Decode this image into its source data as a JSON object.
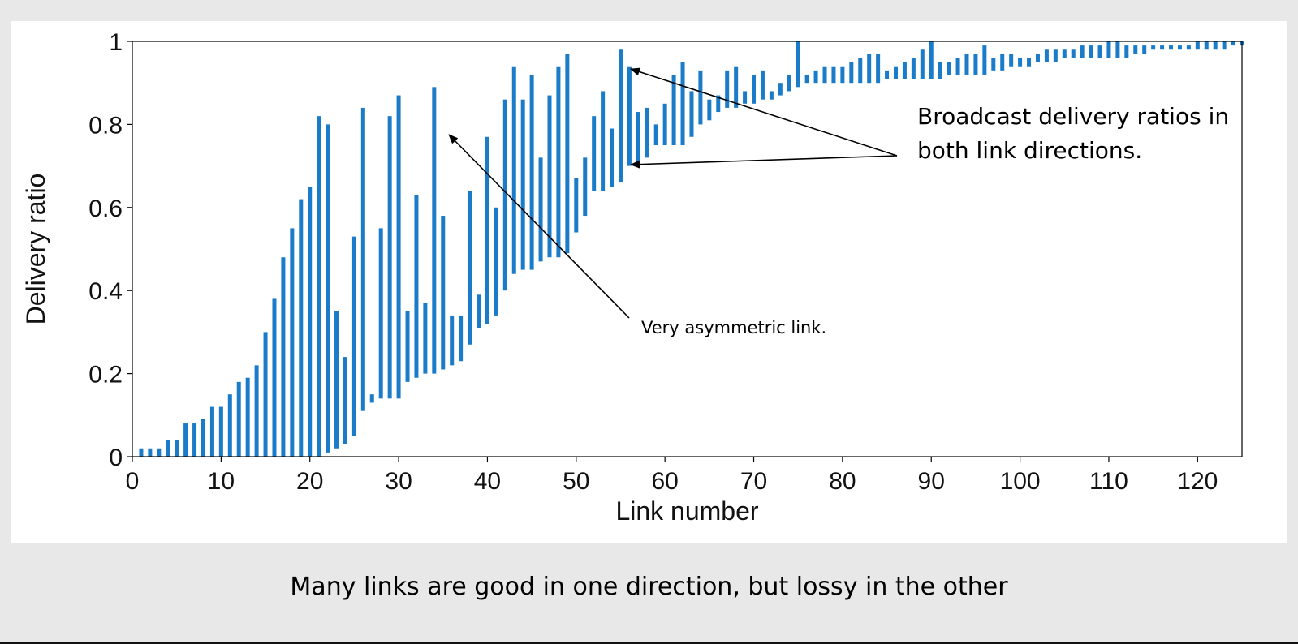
{
  "chart_data": {
    "type": "bar",
    "subtype": "range",
    "xlabel": "Link number",
    "ylabel": "Delivery ratio",
    "xlim": [
      0,
      125
    ],
    "ylim": [
      0,
      1
    ],
    "xticks": [
      0,
      10,
      20,
      30,
      40,
      50,
      60,
      70,
      80,
      90,
      100,
      110,
      120
    ],
    "yticks": [
      0,
      0.2,
      0.4,
      0.6,
      0.8,
      1
    ],
    "ytick_labels": [
      "0",
      "0.2",
      "0.4",
      "0.6",
      "0.8",
      "1"
    ],
    "grid": false,
    "legend": "none",
    "color": "#1a7bc8",
    "description_of_values": "each link shows a vertical bar spanning the delivery ratios measured in its two directions",
    "x": [
      1,
      2,
      3,
      4,
      5,
      6,
      7,
      8,
      9,
      10,
      11,
      12,
      13,
      14,
      15,
      16,
      17,
      18,
      19,
      20,
      21,
      22,
      23,
      24,
      25,
      26,
      27,
      28,
      29,
      30,
      31,
      32,
      33,
      34,
      35,
      36,
      37,
      38,
      39,
      40,
      41,
      42,
      43,
      44,
      45,
      46,
      47,
      48,
      49,
      50,
      51,
      52,
      53,
      54,
      55,
      56,
      57,
      58,
      59,
      60,
      61,
      62,
      63,
      64,
      65,
      66,
      67,
      68,
      69,
      70,
      71,
      72,
      73,
      74,
      75,
      76,
      77,
      78,
      79,
      80,
      81,
      82,
      83,
      84,
      85,
      86,
      87,
      88,
      89,
      90,
      91,
      92,
      93,
      94,
      95,
      96,
      97,
      98,
      99,
      100,
      101,
      102,
      103,
      104,
      105,
      106,
      107,
      108,
      109,
      110,
      111,
      112,
      113,
      114,
      115,
      116,
      117,
      118,
      119,
      120,
      121,
      122,
      123,
      124,
      125
    ],
    "low": [
      0,
      0,
      0,
      0,
      0,
      0,
      0,
      0,
      0,
      0,
      0,
      0,
      0,
      0,
      0,
      0,
      0,
      0,
      0,
      0,
      0,
      0.01,
      0.02,
      0.03,
      0.05,
      0.11,
      0.13,
      0.14,
      0.14,
      0.14,
      0.18,
      0.19,
      0.2,
      0.2,
      0.21,
      0.22,
      0.23,
      0.27,
      0.31,
      0.32,
      0.34,
      0.4,
      0.44,
      0.45,
      0.45,
      0.47,
      0.48,
      0.48,
      0.49,
      0.54,
      0.58,
      0.64,
      0.64,
      0.65,
      0.66,
      0.7,
      0.71,
      0.72,
      0.75,
      0.75,
      0.75,
      0.75,
      0.77,
      0.8,
      0.81,
      0.83,
      0.84,
      0.84,
      0.85,
      0.85,
      0.86,
      0.86,
      0.87,
      0.88,
      0.89,
      0.9,
      0.9,
      0.9,
      0.9,
      0.9,
      0.9,
      0.9,
      0.9,
      0.9,
      0.91,
      0.91,
      0.91,
      0.91,
      0.91,
      0.91,
      0.91,
      0.92,
      0.92,
      0.92,
      0.92,
      0.92,
      0.93,
      0.93,
      0.94,
      0.94,
      0.94,
      0.95,
      0.95,
      0.95,
      0.96,
      0.96,
      0.96,
      0.96,
      0.96,
      0.96,
      0.96,
      0.96,
      0.97,
      0.97,
      0.98,
      0.98,
      0.98,
      0.98,
      0.98,
      0.98,
      0.98,
      0.98,
      0.98,
      0.99,
      0.99
    ],
    "high": [
      0.02,
      0.02,
      0.02,
      0.04,
      0.04,
      0.08,
      0.08,
      0.09,
      0.12,
      0.12,
      0.15,
      0.18,
      0.19,
      0.22,
      0.3,
      0.38,
      0.48,
      0.55,
      0.62,
      0.65,
      0.82,
      0.8,
      0.35,
      0.24,
      0.53,
      0.84,
      0.15,
      0.55,
      0.82,
      0.87,
      0.35,
      0.63,
      0.37,
      0.89,
      0.58,
      0.34,
      0.34,
      0.64,
      0.39,
      0.77,
      0.6,
      0.86,
      0.94,
      0.86,
      0.92,
      0.72,
      0.87,
      0.94,
      0.97,
      0.67,
      0.72,
      0.82,
      0.88,
      0.79,
      0.98,
      0.94,
      0.83,
      0.84,
      0.8,
      0.85,
      0.92,
      0.95,
      0.88,
      0.93,
      0.86,
      0.87,
      0.93,
      0.94,
      0.88,
      0.92,
      0.93,
      0.88,
      0.9,
      0.92,
      1.0,
      0.92,
      0.93,
      0.94,
      0.94,
      0.94,
      0.95,
      0.96,
      0.97,
      0.97,
      0.93,
      0.94,
      0.95,
      0.96,
      0.98,
      1.0,
      0.95,
      0.95,
      0.96,
      0.97,
      0.97,
      0.99,
      0.96,
      0.97,
      0.97,
      0.96,
      0.96,
      0.97,
      0.98,
      0.98,
      0.98,
      0.98,
      0.99,
      0.99,
      0.99,
      1.0,
      1.0,
      0.99,
      0.99,
      0.99,
      0.99,
      0.99,
      0.99,
      0.99,
      0.99,
      1.0,
      1.0,
      1.0,
      1.0,
      1.0,
      1.0
    ]
  },
  "annotations": {
    "broadcast_line1": "Broadcast delivery ratios in",
    "broadcast_line2": "both link directions.",
    "asymmetric": "Very asymmetric link."
  },
  "caption": "Many links are good in one direction, but lossy in the other"
}
